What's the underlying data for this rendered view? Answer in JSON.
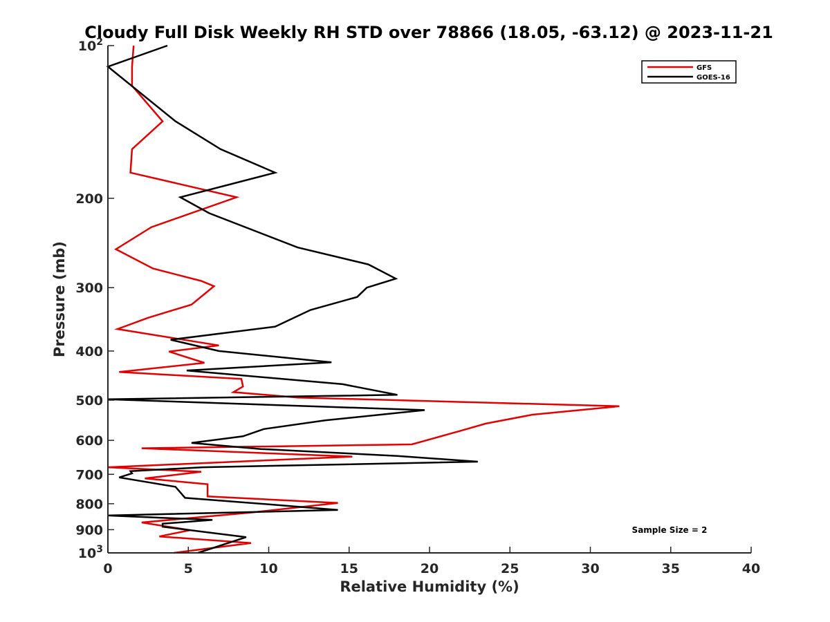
{
  "chart_data": {
    "type": "line",
    "title": "Cloudy Full Disk Weekly RH STD over 78866 (18.05, -63.12) @ 2023-11-21",
    "xlabel": "Relative Humidity (%)",
    "ylabel": "Pressure (mb)",
    "xlim": [
      0,
      40
    ],
    "ylim": [
      100,
      1000
    ],
    "yscale": "log",
    "y_reversed": true,
    "x_ticks": [
      0,
      5,
      10,
      15,
      20,
      25,
      30,
      35,
      40
    ],
    "x_tick_labels": [
      "0",
      "5",
      "10",
      "15",
      "20",
      "25",
      "30",
      "35",
      "40"
    ],
    "y_ticks": [
      100,
      200,
      300,
      400,
      500,
      600,
      700,
      800,
      900,
      1000
    ],
    "y_tick_labels": [
      {
        "base": "10",
        "exp": "2"
      },
      {
        "base": "200",
        "exp": ""
      },
      {
        "base": "300",
        "exp": ""
      },
      {
        "base": "400",
        "exp": ""
      },
      {
        "base": "500",
        "exp": ""
      },
      {
        "base": "600",
        "exp": ""
      },
      {
        "base": "700",
        "exp": ""
      },
      {
        "base": "800",
        "exp": ""
      },
      {
        "base": "900",
        "exp": ""
      },
      {
        "base": "10",
        "exp": "3"
      }
    ],
    "grid": false,
    "legend_position": "top-right",
    "annotation": "Sample Size = 2",
    "series": [
      {
        "name": "GFS",
        "color": "#e00000",
        "x": [
          1.6,
          1.5,
          1.5,
          3.4,
          1.5,
          1.4,
          8.0,
          2.7,
          0.5,
          2.8,
          5.8,
          6.6,
          5.2,
          2.5,
          0.6,
          6.9,
          3.8,
          6.0,
          0.7,
          8.3,
          8.4,
          7.8,
          11.8,
          31.8,
          26.4,
          23.5,
          21.8,
          18.9,
          2.1,
          15.2,
          0.0,
          5.8,
          2.3,
          6.2,
          6.2,
          14.3,
          9.0,
          2.1,
          5.1,
          3.2,
          8.9,
          4.1
        ],
        "y": [
          100,
          110,
          120,
          141,
          160,
          178,
          199,
          228,
          252,
          275,
          291,
          298,
          324,
          344,
          362,
          390,
          401,
          422,
          440,
          454,
          470,
          482,
          494,
          514,
          534,
          556,
          576,
          611,
          622,
          646,
          678,
          692,
          713,
          732,
          774,
          797,
          832,
          871,
          902,
          928,
          956,
          1000
        ]
      },
      {
        "name": "GOES-16",
        "color": "#000000",
        "x": [
          3.7,
          0.0,
          4.2,
          7.0,
          10.4,
          4.5,
          6.3,
          11.8,
          16.2,
          17.9,
          16.1,
          15.5,
          12.6,
          10.4,
          3.9,
          6.9,
          13.9,
          4.9,
          14.6,
          18.0,
          0.0,
          19.7,
          13.5,
          9.7,
          8.4,
          5.2,
          9.5,
          18.0,
          23.0,
          5.9,
          1.4,
          1.5,
          0.7,
          4.2,
          4.8,
          10.8,
          14.3,
          0.0,
          6.5,
          3.4,
          3.4,
          8.6,
          5.6
        ],
        "y": [
          100,
          110,
          141,
          160,
          178,
          199,
          214,
          250,
          270,
          288,
          300,
          313,
          332,
          358,
          380,
          400,
          421,
          437,
          465,
          488,
          498,
          523,
          548,
          570,
          589,
          607,
          624,
          644,
          661,
          678,
          690,
          697,
          710,
          741,
          779,
          806,
          823,
          844,
          861,
          876,
          888,
          931,
          1000
        ]
      }
    ]
  }
}
